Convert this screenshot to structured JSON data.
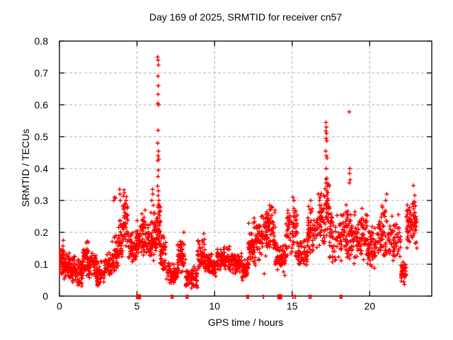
{
  "chart_data": {
    "type": "scatter",
    "title": "Day 169 of 2025, SRMTID for receiver cn57",
    "xlabel": "GPS time / hours",
    "ylabel": "SRMTID / TECUs",
    "xlim": [
      0,
      24
    ],
    "ylim": [
      0,
      0.8
    ],
    "xticks": [
      0,
      5,
      10,
      15,
      20
    ],
    "xtick_labels": [
      "0",
      "5",
      "10",
      "15",
      "20"
    ],
    "yticks": [
      0,
      0.1,
      0.2,
      0.3,
      0.4,
      0.5,
      0.6,
      0.7,
      0.8
    ],
    "ytick_labels": [
      "0",
      "0.1",
      "0.2",
      "0.3",
      "0.4",
      "0.5",
      "0.6",
      "0.7",
      "0.8"
    ],
    "grid": true,
    "legend": "none",
    "marker": "+",
    "marker_color": "#ff0000",
    "grid_color": "#b3b3b3",
    "frame_color": "#000000",
    "seed": 42,
    "series": [
      {
        "name": "SRMTID",
        "band_format": "[t_start_h, t_end_h, y_min_TECU, y_max_TECU, n_points]",
        "bands": [
          [
            0.0,
            0.3,
            0.06,
            0.17,
            40
          ],
          [
            0.3,
            0.7,
            0.05,
            0.15,
            50
          ],
          [
            0.7,
            1.1,
            0.03,
            0.13,
            45
          ],
          [
            1.1,
            1.5,
            0.02,
            0.12,
            45
          ],
          [
            1.5,
            1.9,
            0.05,
            0.18,
            50
          ],
          [
            1.9,
            2.4,
            0.05,
            0.14,
            50
          ],
          [
            2.4,
            2.9,
            0.02,
            0.12,
            50
          ],
          [
            2.9,
            3.4,
            0.05,
            0.15,
            45
          ],
          [
            3.4,
            3.8,
            0.07,
            0.2,
            40
          ],
          [
            3.8,
            4.1,
            0.1,
            0.25,
            35
          ],
          [
            4.1,
            4.45,
            0.13,
            0.33,
            40
          ],
          [
            4.45,
            4.9,
            0.09,
            0.22,
            45
          ],
          [
            4.9,
            5.3,
            0.1,
            0.25,
            40
          ],
          [
            5.3,
            5.6,
            0.12,
            0.27,
            35
          ],
          [
            5.6,
            6.1,
            0.1,
            0.24,
            55
          ],
          [
            6.1,
            6.3,
            0.13,
            0.27,
            30
          ],
          [
            6.3,
            6.5,
            0.15,
            0.3,
            35
          ],
          [
            6.5,
            6.9,
            0.06,
            0.2,
            40
          ],
          [
            6.9,
            7.6,
            0.03,
            0.11,
            65
          ],
          [
            7.6,
            8.15,
            0.06,
            0.2,
            50
          ],
          [
            8.15,
            8.9,
            0.02,
            0.1,
            65
          ],
          [
            8.9,
            9.4,
            0.06,
            0.19,
            50
          ],
          [
            9.4,
            10.1,
            0.06,
            0.14,
            65
          ],
          [
            10.1,
            11.0,
            0.07,
            0.16,
            80
          ],
          [
            11.0,
            11.75,
            0.06,
            0.14,
            70
          ],
          [
            11.75,
            12.15,
            0.04,
            0.12,
            40
          ],
          [
            12.15,
            12.7,
            0.08,
            0.24,
            55
          ],
          [
            12.7,
            13.4,
            0.11,
            0.27,
            70
          ],
          [
            13.4,
            13.9,
            0.12,
            0.29,
            50
          ],
          [
            13.9,
            14.6,
            0.06,
            0.18,
            60
          ],
          [
            14.6,
            15.35,
            0.1,
            0.31,
            70
          ],
          [
            15.35,
            16.0,
            0.08,
            0.19,
            60
          ],
          [
            16.0,
            16.6,
            0.12,
            0.29,
            55
          ],
          [
            16.6,
            17.1,
            0.14,
            0.33,
            50
          ],
          [
            17.1,
            17.4,
            0.18,
            0.37,
            40
          ],
          [
            17.4,
            18.2,
            0.09,
            0.28,
            65
          ],
          [
            18.2,
            18.6,
            0.11,
            0.3,
            40
          ],
          [
            18.6,
            19.3,
            0.1,
            0.27,
            60
          ],
          [
            19.3,
            19.85,
            0.1,
            0.28,
            50
          ],
          [
            19.85,
            20.6,
            0.08,
            0.24,
            65
          ],
          [
            20.6,
            21.2,
            0.1,
            0.3,
            55
          ],
          [
            21.2,
            22.0,
            0.08,
            0.26,
            65
          ],
          [
            22.0,
            22.35,
            0.035,
            0.12,
            40
          ],
          [
            22.35,
            22.75,
            0.14,
            0.3,
            45
          ],
          [
            22.75,
            23.1,
            0.12,
            0.33,
            35
          ]
        ],
        "points": [
          [
            6.33,
            0.75
          ],
          [
            6.36,
            0.74
          ],
          [
            6.38,
            0.725
          ],
          [
            6.35,
            0.69
          ],
          [
            6.37,
            0.66
          ],
          [
            6.36,
            0.633
          ],
          [
            6.34,
            0.605
          ],
          [
            6.39,
            0.6
          ],
          [
            6.36,
            0.52
          ],
          [
            6.33,
            0.48
          ],
          [
            6.38,
            0.455
          ],
          [
            6.36,
            0.44
          ],
          [
            6.4,
            0.43
          ],
          [
            6.34,
            0.425
          ],
          [
            6.37,
            0.395
          ],
          [
            6.35,
            0.375
          ],
          [
            6.33,
            0.345
          ],
          [
            6.38,
            0.33
          ],
          [
            6.36,
            0.315
          ],
          [
            6.41,
            0.3
          ],
          [
            4.16,
            0.333
          ],
          [
            4.18,
            0.324
          ],
          [
            3.62,
            0.307
          ],
          [
            4.3,
            0.3
          ],
          [
            4.22,
            0.29
          ],
          [
            4.12,
            0.285
          ],
          [
            3.5,
            0.3
          ],
          [
            3.55,
            0.31
          ],
          [
            3.88,
            0.335
          ],
          [
            3.9,
            0.32
          ],
          [
            3.92,
            0.3
          ],
          [
            5.95,
            0.3
          ],
          [
            6.0,
            0.335
          ],
          [
            6.02,
            0.32
          ],
          [
            6.05,
            0.285
          ],
          [
            5.52,
            0.27
          ],
          [
            5.9,
            0.262
          ],
          [
            17.18,
            0.545
          ],
          [
            17.2,
            0.53
          ],
          [
            17.17,
            0.518
          ],
          [
            17.22,
            0.51
          ],
          [
            17.19,
            0.495
          ],
          [
            17.24,
            0.487
          ],
          [
            17.16,
            0.455
          ],
          [
            17.21,
            0.44
          ],
          [
            17.25,
            0.433
          ],
          [
            17.2,
            0.4
          ],
          [
            17.23,
            0.37
          ],
          [
            17.18,
            0.355
          ],
          [
            18.68,
            0.578
          ],
          [
            18.72,
            0.4
          ],
          [
            18.7,
            0.385
          ],
          [
            18.74,
            0.365
          ],
          [
            18.69,
            0.355
          ],
          [
            15.05,
            0.31
          ],
          [
            15.12,
            0.3
          ],
          [
            13.55,
            0.285
          ],
          [
            13.72,
            0.278
          ],
          [
            21.1,
            0.32
          ],
          [
            21.03,
            0.3
          ],
          [
            22.82,
            0.347
          ],
          [
            22.9,
            0.316
          ],
          [
            22.86,
            0.296
          ],
          [
            19.5,
            0.275
          ],
          [
            16.2,
            0.3
          ],
          [
            12.55,
            0.245
          ],
          [
            13.2,
            0.07
          ],
          [
            0.25,
            0.175
          ],
          [
            1.8,
            0.172
          ],
          [
            1.85,
            0.168
          ],
          [
            9.3,
            0.196
          ],
          [
            8.02,
            0.2
          ]
        ]
      }
    ],
    "zero_marks": {
      "note": "red marks sitting on the x-axis at y=0",
      "squares": [
        5.1,
        14.2
      ],
      "ticks": [
        7.22,
        7.32,
        8.18,
        8.28,
        12.08,
        12.18,
        13.15,
        15.05,
        15.2,
        16.1,
        16.22,
        18.1,
        18.2
      ]
    }
  }
}
